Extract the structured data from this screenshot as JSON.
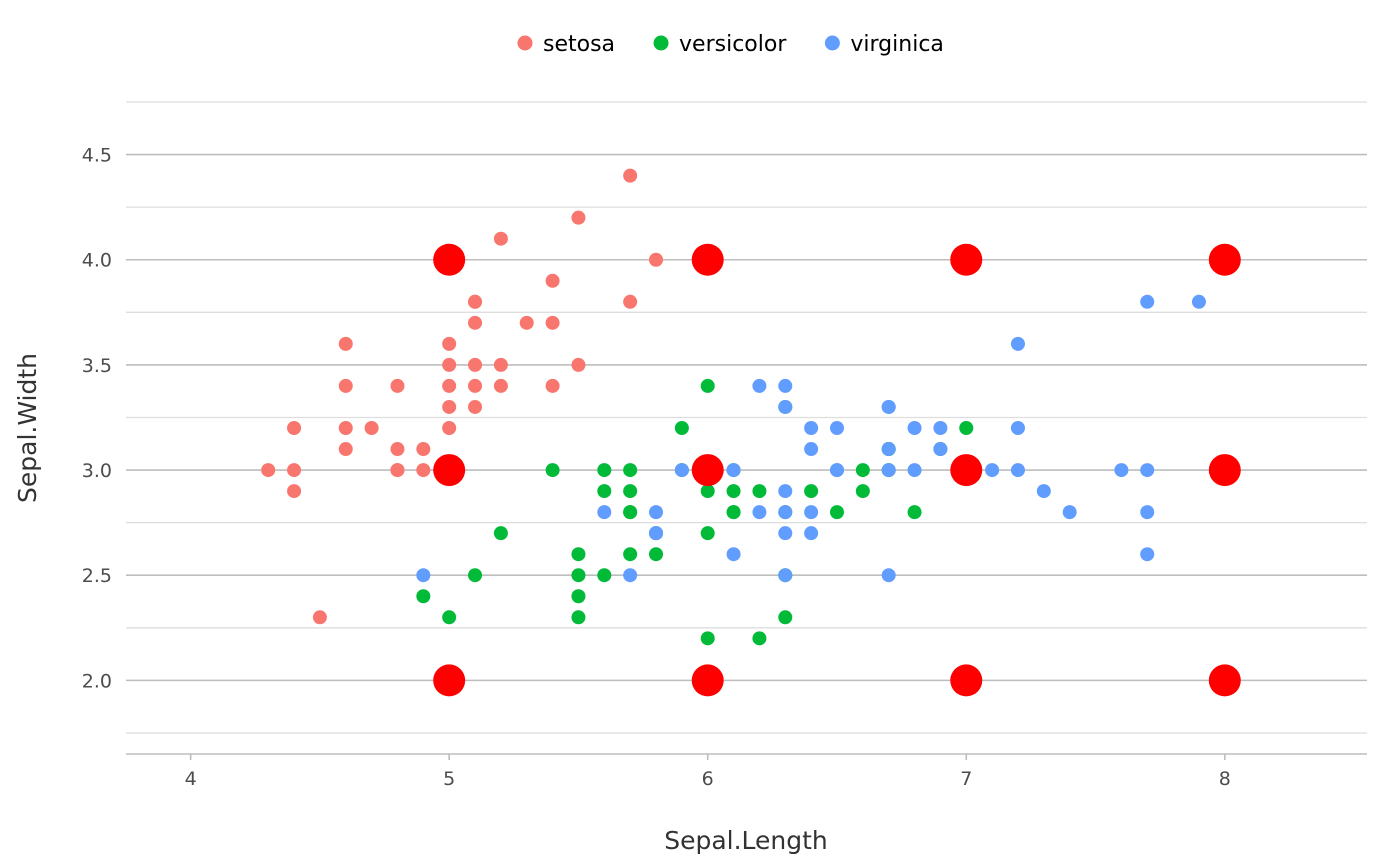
{
  "chart_data": {
    "type": "scatter",
    "xlabel": "Sepal.Length",
    "ylabel": "Sepal.Width",
    "xlim": [
      3.75,
      8.55
    ],
    "ylim": [
      1.65,
      4.75
    ],
    "xticks": [
      4,
      5,
      6,
      7,
      8
    ],
    "xtick_labels": [
      "4",
      "5",
      "6",
      "7",
      "8"
    ],
    "yticks": [
      2.0,
      2.5,
      3.0,
      3.5,
      4.0,
      4.5
    ],
    "ytick_labels": [
      "2.0",
      "2.5",
      "3.0",
      "3.5",
      "4.0",
      "4.5"
    ],
    "grid": true,
    "legend_position": "top",
    "series": [
      {
        "name": "setosa",
        "color": "#F8766D",
        "points": [
          [
            5.1,
            3.5
          ],
          [
            4.9,
            3.0
          ],
          [
            4.7,
            3.2
          ],
          [
            4.6,
            3.1
          ],
          [
            5.0,
            3.6
          ],
          [
            5.4,
            3.9
          ],
          [
            4.6,
            3.4
          ],
          [
            5.0,
            3.4
          ],
          [
            4.4,
            2.9
          ],
          [
            4.9,
            3.1
          ],
          [
            5.4,
            3.7
          ],
          [
            4.8,
            3.4
          ],
          [
            4.8,
            3.0
          ],
          [
            4.3,
            3.0
          ],
          [
            5.8,
            4.0
          ],
          [
            5.7,
            4.4
          ],
          [
            5.1,
            3.8
          ],
          [
            5.7,
            3.8
          ],
          [
            5.4,
            3.4
          ],
          [
            4.6,
            3.6
          ],
          [
            5.1,
            3.3
          ],
          [
            5.0,
            3.0
          ],
          [
            5.2,
            3.5
          ],
          [
            5.2,
            3.4
          ],
          [
            4.8,
            3.1
          ],
          [
            5.5,
            4.2
          ],
          [
            5.2,
            4.1
          ],
          [
            5.5,
            3.5
          ],
          [
            4.4,
            3.0
          ],
          [
            5.1,
            3.4
          ],
          [
            5.0,
            3.5
          ],
          [
            4.5,
            2.3
          ],
          [
            4.4,
            3.2
          ],
          [
            4.8,
            3.0
          ],
          [
            5.1,
            3.8
          ],
          [
            4.6,
            3.2
          ],
          [
            5.3,
            3.7
          ],
          [
            5.0,
            3.3
          ],
          [
            5.1,
            3.7
          ],
          [
            5.0,
            3.2
          ]
        ]
      },
      {
        "name": "versicolor",
        "color": "#00BA38",
        "points": [
          [
            7.0,
            3.2
          ],
          [
            6.9,
            3.1
          ],
          [
            5.5,
            2.3
          ],
          [
            6.5,
            2.8
          ],
          [
            5.7,
            2.8
          ],
          [
            6.3,
            3.3
          ],
          [
            4.9,
            2.4
          ],
          [
            6.6,
            2.9
          ],
          [
            5.2,
            2.7
          ],
          [
            5.0,
            2.0
          ],
          [
            5.9,
            3.0
          ],
          [
            6.0,
            2.2
          ],
          [
            6.1,
            2.9
          ],
          [
            5.6,
            2.9
          ],
          [
            6.7,
            3.1
          ],
          [
            5.6,
            3.0
          ],
          [
            5.8,
            2.7
          ],
          [
            6.2,
            2.2
          ],
          [
            5.6,
            2.5
          ],
          [
            5.9,
            3.2
          ],
          [
            6.1,
            2.8
          ],
          [
            6.3,
            2.5
          ],
          [
            6.4,
            2.9
          ],
          [
            6.6,
            3.0
          ],
          [
            6.8,
            2.8
          ],
          [
            6.7,
            3.0
          ],
          [
            6.0,
            2.9
          ],
          [
            5.7,
            2.6
          ],
          [
            5.5,
            2.4
          ],
          [
            5.8,
            2.7
          ],
          [
            6.0,
            2.7
          ],
          [
            5.4,
            3.0
          ],
          [
            6.0,
            3.4
          ],
          [
            6.7,
            3.1
          ],
          [
            6.3,
            2.3
          ],
          [
            5.5,
            2.5
          ],
          [
            5.5,
            2.6
          ],
          [
            6.1,
            3.0
          ],
          [
            5.0,
            2.3
          ],
          [
            5.7,
            3.0
          ],
          [
            5.7,
            2.9
          ],
          [
            6.2,
            2.9
          ],
          [
            5.1,
            2.5
          ],
          [
            5.7,
            2.8
          ],
          [
            5.8,
            2.6
          ],
          [
            6.3,
            2.8
          ],
          [
            6.1,
            2.8
          ]
        ]
      },
      {
        "name": "virginica",
        "color": "#619CFF",
        "points": [
          [
            6.3,
            3.3
          ],
          [
            5.8,
            2.7
          ],
          [
            7.1,
            3.0
          ],
          [
            6.3,
            2.9
          ],
          [
            6.5,
            3.0
          ],
          [
            7.6,
            3.0
          ],
          [
            4.9,
            2.5
          ],
          [
            7.3,
            2.9
          ],
          [
            6.7,
            2.5
          ],
          [
            7.2,
            3.6
          ],
          [
            6.5,
            3.2
          ],
          [
            6.4,
            2.7
          ],
          [
            6.8,
            3.0
          ],
          [
            5.7,
            2.5
          ],
          [
            5.8,
            2.8
          ],
          [
            6.4,
            3.2
          ],
          [
            7.7,
            3.8
          ],
          [
            7.7,
            2.6
          ],
          [
            6.9,
            3.2
          ],
          [
            5.6,
            2.8
          ],
          [
            7.7,
            2.8
          ],
          [
            6.7,
            3.3
          ],
          [
            7.2,
            3.2
          ],
          [
            6.2,
            2.8
          ],
          [
            6.1,
            3.0
          ],
          [
            6.4,
            2.8
          ],
          [
            7.2,
            3.0
          ],
          [
            7.4,
            2.8
          ],
          [
            7.9,
            3.8
          ],
          [
            6.3,
            2.8
          ],
          [
            6.1,
            2.6
          ],
          [
            7.7,
            3.0
          ],
          [
            6.3,
            3.4
          ],
          [
            6.4,
            3.1
          ],
          [
            6.0,
            3.0
          ],
          [
            6.9,
            3.1
          ],
          [
            6.7,
            3.1
          ],
          [
            5.8,
            2.7
          ],
          [
            6.8,
            3.2
          ],
          [
            6.7,
            3.0
          ],
          [
            6.3,
            2.5
          ],
          [
            6.2,
            3.4
          ],
          [
            5.9,
            3.0
          ],
          [
            6.3,
            2.7
          ],
          [
            6.5,
            3.0
          ],
          [
            6.7,
            3.3
          ]
        ]
      },
      {
        "color": "#FF0000",
        "points": [
          [
            5,
            2
          ],
          [
            6,
            2
          ],
          [
            7,
            2
          ],
          [
            8,
            2
          ],
          [
            5,
            3
          ],
          [
            6,
            3
          ],
          [
            7,
            3
          ],
          [
            8,
            3
          ],
          [
            5,
            4
          ],
          [
            6,
            4
          ],
          [
            7,
            4
          ],
          [
            8,
            4
          ]
        ]
      }
    ]
  }
}
